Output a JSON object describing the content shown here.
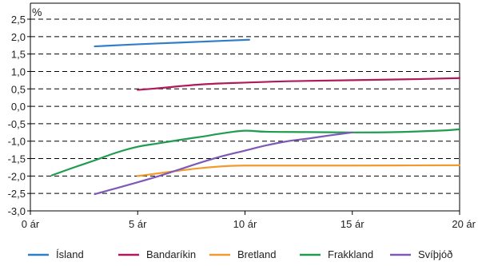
{
  "chart_data": {
    "type": "line",
    "ylabel": "%",
    "xlim": [
      0,
      20
    ],
    "ylim": [
      -3.0,
      2.5
    ],
    "x_tick_values": [
      0,
      5,
      10,
      15,
      20
    ],
    "x_tick_labels": [
      "0 ár",
      "5 ár",
      "10 ár",
      "15 ár",
      "20 ár"
    ],
    "y_tick_values": [
      2.5,
      2.0,
      1.5,
      1.0,
      0.5,
      0.0,
      -0.5,
      -1.0,
      -1.5,
      -2.0,
      -2.5,
      -3.0
    ],
    "y_tick_labels": [
      "2,5",
      "2,0",
      "1,5",
      "1,0",
      "0,5",
      "0,0",
      "-0,5",
      "-1,0",
      "-1,5",
      "-2,0",
      "-2,5",
      "-3,0"
    ],
    "grid": "horizontal dashed",
    "legend_position": "bottom",
    "series": [
      {
        "name": "Ísland",
        "color": "#2E7EC8",
        "points": [
          [
            3,
            1.72
          ],
          [
            5,
            1.78
          ],
          [
            7,
            1.83
          ],
          [
            9,
            1.88
          ],
          [
            10.2,
            1.91
          ]
        ]
      },
      {
        "name": "Bandaríkin",
        "color": "#B0195B",
        "points": [
          [
            5,
            0.47
          ],
          [
            6,
            0.52
          ],
          [
            7,
            0.58
          ],
          [
            8,
            0.63
          ],
          [
            9,
            0.66
          ],
          [
            10,
            0.68
          ],
          [
            12,
            0.72
          ],
          [
            15,
            0.75
          ],
          [
            18,
            0.78
          ],
          [
            20,
            0.81
          ]
        ]
      },
      {
        "name": "Bretland",
        "color": "#F29A2E",
        "points": [
          [
            5,
            -2.0
          ],
          [
            6,
            -1.92
          ],
          [
            7,
            -1.84
          ],
          [
            8,
            -1.77
          ],
          [
            9,
            -1.72
          ],
          [
            10,
            -1.7
          ],
          [
            12,
            -1.7
          ],
          [
            15,
            -1.7
          ],
          [
            20,
            -1.69
          ]
        ]
      },
      {
        "name": "Frakkland",
        "color": "#1F9C4E",
        "points": [
          [
            1,
            -1.98
          ],
          [
            2,
            -1.76
          ],
          [
            3,
            -1.55
          ],
          [
            4,
            -1.33
          ],
          [
            5,
            -1.16
          ],
          [
            6,
            -1.06
          ],
          [
            7,
            -0.96
          ],
          [
            8,
            -0.87
          ],
          [
            9,
            -0.77
          ],
          [
            10,
            -0.7
          ],
          [
            11,
            -0.73
          ],
          [
            13,
            -0.74
          ],
          [
            15,
            -0.75
          ],
          [
            17,
            -0.74
          ],
          [
            19,
            -0.7
          ],
          [
            20,
            -0.66
          ]
        ]
      },
      {
        "name": "Svíþjóð",
        "color": "#7D5AB5",
        "points": [
          [
            3,
            -2.52
          ],
          [
            4,
            -2.35
          ],
          [
            5,
            -2.18
          ],
          [
            6,
            -2.0
          ],
          [
            7,
            -1.8
          ],
          [
            8,
            -1.6
          ],
          [
            9,
            -1.42
          ],
          [
            10,
            -1.27
          ],
          [
            11,
            -1.12
          ],
          [
            12,
            -1.0
          ],
          [
            13,
            -0.92
          ],
          [
            14,
            -0.83
          ],
          [
            15,
            -0.75
          ]
        ]
      }
    ]
  }
}
